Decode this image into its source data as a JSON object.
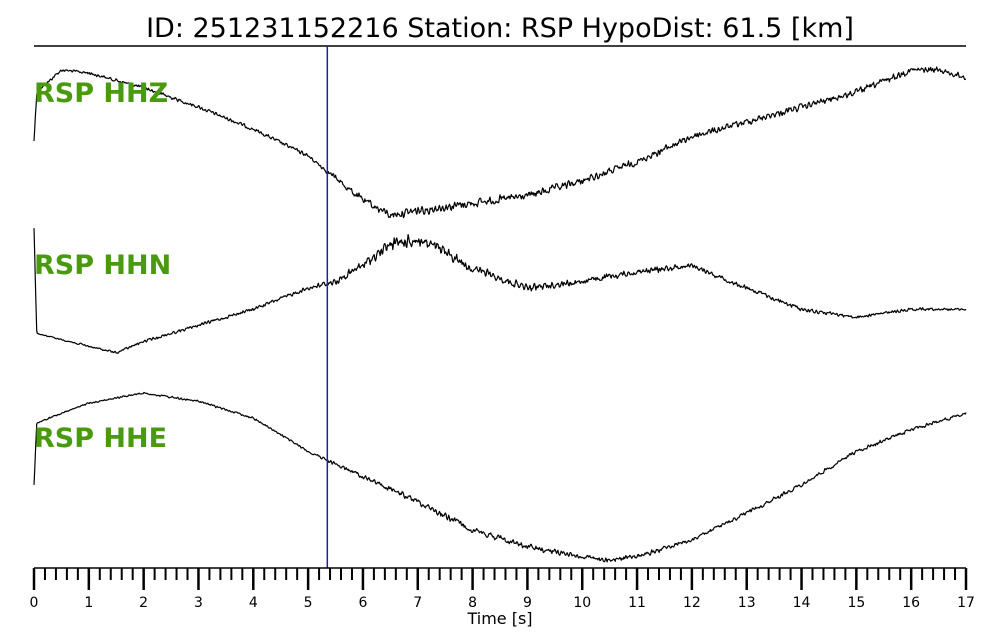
{
  "figure": {
    "title": "ID: 251231152216   Station: RSP   HypoDist:    61.5 [km]"
  },
  "chart_data": {
    "type": "line",
    "xlabel": "Time [s]",
    "xlim": [
      0,
      17
    ],
    "major_ticks": [
      0,
      1,
      2,
      3,
      4,
      5,
      6,
      7,
      8,
      9,
      10,
      11,
      12,
      13,
      14,
      15,
      16,
      17
    ],
    "tick_labels": [
      "0",
      "1",
      "2",
      "3",
      "4",
      "5",
      "6",
      "7",
      "8",
      "9",
      "10",
      "11",
      "12",
      "13",
      "14",
      "15",
      "16",
      "17"
    ],
    "minor_tick_step": 0.2,
    "grid": false,
    "marker_line": {
      "x": 5.35,
      "color": "#1f1fb4"
    },
    "label_color": "#4a9a10",
    "trace_color": "#000000",
    "series": [
      {
        "name": "RSP HHZ",
        "noise": 2.0,
        "envelope": [
          [
            0,
            0.2
          ],
          [
            5.2,
            0.25
          ],
          [
            5.8,
            0.5
          ],
          [
            7.0,
            0.6
          ],
          [
            9.0,
            0.5
          ],
          [
            12.0,
            0.45
          ],
          [
            17,
            0.4
          ]
        ],
        "baseline": [
          [
            0,
            0.48
          ],
          [
            0.05,
            0.15
          ],
          [
            0.5,
            0.0
          ],
          [
            1.0,
            0.02
          ],
          [
            2.0,
            0.12
          ],
          [
            3.0,
            0.25
          ],
          [
            4.0,
            0.4
          ],
          [
            5.0,
            0.58
          ],
          [
            5.4,
            0.7
          ],
          [
            6.0,
            0.88
          ],
          [
            6.5,
            0.98
          ],
          [
            7.0,
            0.95
          ],
          [
            8.0,
            0.9
          ],
          [
            9.0,
            0.85
          ],
          [
            10.0,
            0.75
          ],
          [
            11.0,
            0.62
          ],
          [
            12.0,
            0.45
          ],
          [
            13.0,
            0.35
          ],
          [
            14.0,
            0.25
          ],
          [
            15.0,
            0.15
          ],
          [
            16.0,
            0.0
          ],
          [
            16.5,
            0.0
          ],
          [
            17.0,
            0.05
          ]
        ]
      },
      {
        "name": "RSP HHN",
        "noise": 1.0,
        "envelope": [
          [
            0,
            0.1
          ],
          [
            1.0,
            0.3
          ],
          [
            5.0,
            0.5
          ],
          [
            5.5,
            0.9
          ],
          [
            6.5,
            1.5
          ],
          [
            7.0,
            1.8
          ],
          [
            8.0,
            1.2
          ],
          [
            9.0,
            0.9
          ],
          [
            11.0,
            0.75
          ],
          [
            12.0,
            0.7
          ],
          [
            14.0,
            0.55
          ],
          [
            15.0,
            0.4
          ],
          [
            17.0,
            0.35
          ]
        ],
        "baseline": [
          [
            0,
            0.05
          ],
          [
            0.05,
            0.7
          ],
          [
            1.0,
            0.78
          ],
          [
            1.5,
            0.82
          ],
          [
            2.0,
            0.75
          ],
          [
            3.0,
            0.65
          ],
          [
            4.0,
            0.55
          ],
          [
            5.0,
            0.42
          ],
          [
            5.5,
            0.38
          ],
          [
            6.0,
            0.28
          ],
          [
            6.5,
            0.15
          ],
          [
            7.0,
            0.12
          ],
          [
            7.5,
            0.2
          ],
          [
            8.0,
            0.3
          ],
          [
            9.0,
            0.42
          ],
          [
            10.0,
            0.38
          ],
          [
            11.0,
            0.32
          ],
          [
            12.0,
            0.28
          ],
          [
            13.0,
            0.42
          ],
          [
            14.0,
            0.55
          ],
          [
            15.0,
            0.6
          ],
          [
            16.0,
            0.55
          ],
          [
            17.0,
            0.55
          ]
        ]
      },
      {
        "name": "RSP HHE",
        "noise": 1.5,
        "envelope": [
          [
            0,
            0.15
          ],
          [
            5.0,
            0.2
          ],
          [
            6.0,
            0.4
          ],
          [
            7.5,
            0.55
          ],
          [
            10.0,
            0.45
          ],
          [
            13.0,
            0.35
          ],
          [
            17,
            0.3
          ]
        ],
        "baseline": [
          [
            0,
            0.55
          ],
          [
            0.05,
            0.18
          ],
          [
            1.0,
            0.06
          ],
          [
            2.0,
            0.0
          ],
          [
            3.0,
            0.05
          ],
          [
            4.0,
            0.15
          ],
          [
            5.0,
            0.35
          ],
          [
            6.0,
            0.5
          ],
          [
            7.0,
            0.65
          ],
          [
            8.0,
            0.82
          ],
          [
            9.0,
            0.92
          ],
          [
            10.0,
            0.98
          ],
          [
            10.5,
            1.0
          ],
          [
            11.0,
            0.98
          ],
          [
            12.0,
            0.88
          ],
          [
            13.0,
            0.72
          ],
          [
            14.0,
            0.55
          ],
          [
            15.0,
            0.35
          ],
          [
            16.0,
            0.22
          ],
          [
            17.0,
            0.12
          ]
        ]
      }
    ]
  }
}
